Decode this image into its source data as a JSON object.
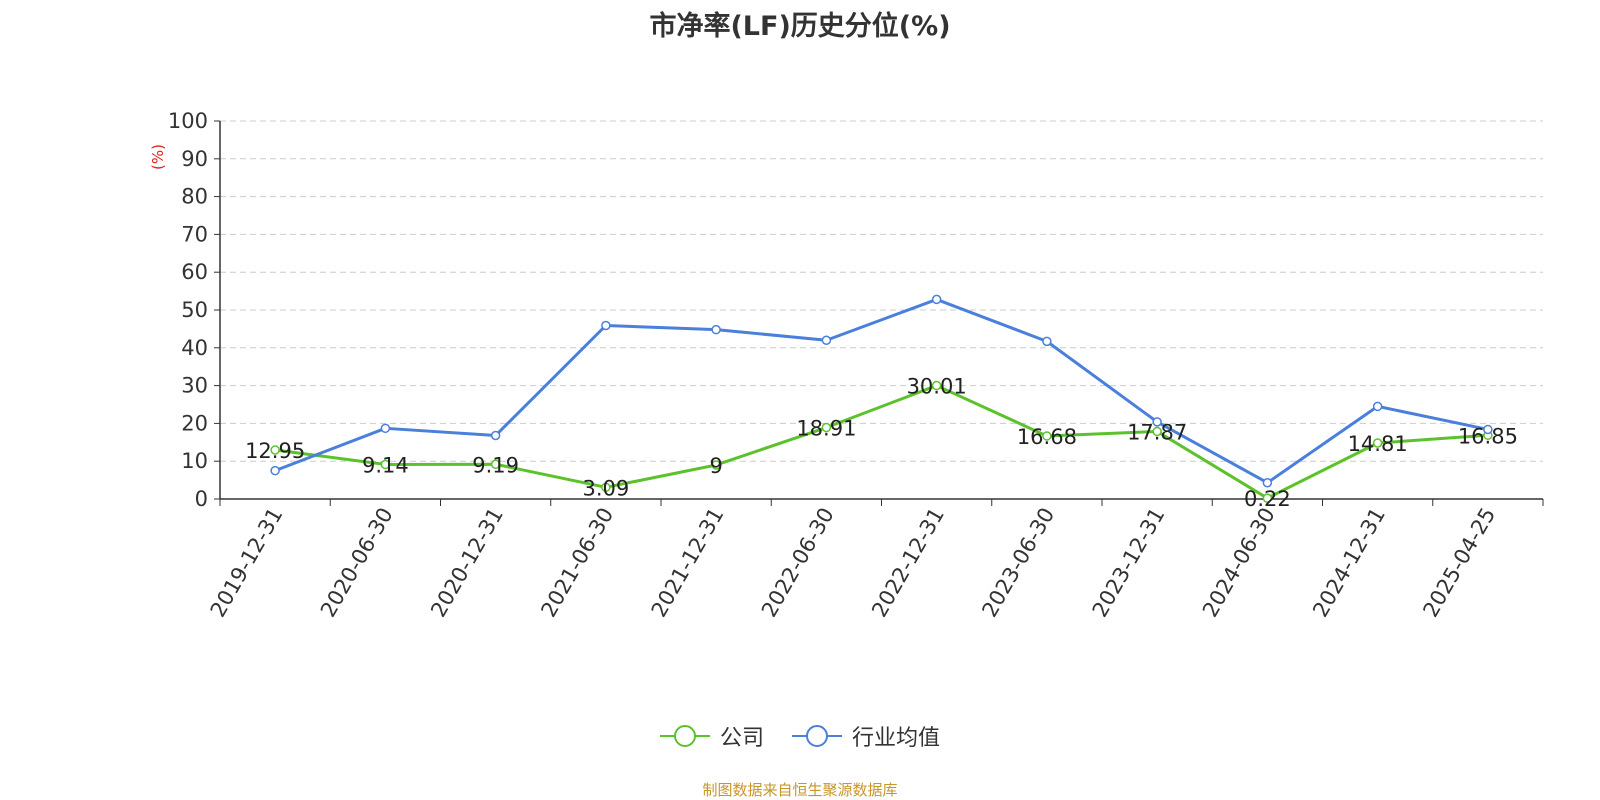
{
  "chart_data": {
    "type": "line",
    "title": "市净率(LF)历史分位(%)",
    "ylabel": "(%)",
    "categories": [
      "2019-12-31",
      "2020-06-30",
      "2020-12-31",
      "2021-06-30",
      "2021-12-31",
      "2022-06-30",
      "2022-12-31",
      "2023-06-30",
      "2023-12-31",
      "2024-06-30",
      "2024-12-31",
      "2025-04-25"
    ],
    "ylim": [
      0,
      100
    ],
    "yticks": [
      0,
      10,
      20,
      30,
      40,
      50,
      60,
      70,
      80,
      90,
      100
    ],
    "grid": true,
    "legend_position": "bottom",
    "series": [
      {
        "name": "公司",
        "color": "#5cc22c",
        "values": [
          12.95,
          9.14,
          9.19,
          3.09,
          9,
          18.91,
          30.01,
          16.68,
          17.87,
          0.22,
          14.81,
          16.85
        ],
        "labels": [
          "12.95",
          "9.14",
          "9.19",
          "3.09",
          "9",
          "18.91",
          "30.01",
          "16.68",
          "17.87",
          "0.22",
          "14.81",
          "16.85"
        ]
      },
      {
        "name": "行业均值",
        "color": "#4a7fdb",
        "values": [
          7.5,
          18.7,
          16.8,
          45.9,
          44.8,
          42.0,
          52.8,
          41.7,
          20.4,
          4.3,
          24.5,
          18.4
        ]
      }
    ],
    "source": "制图数据来自恒生聚源数据库"
  }
}
